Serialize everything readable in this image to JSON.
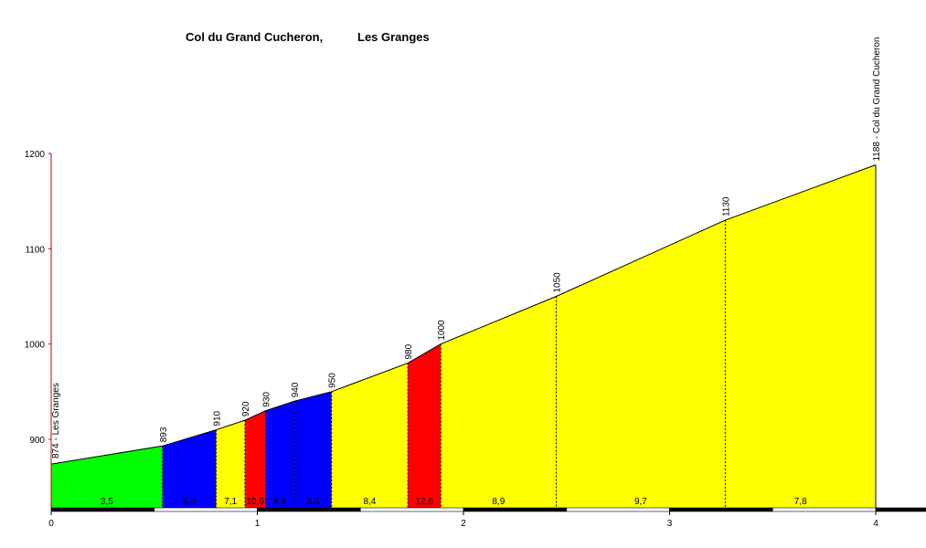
{
  "chart_data": {
    "type": "area",
    "title": "Col du Grand Cucheron,",
    "subtitle": "Les Granges",
    "x": [
      0,
      0.54,
      0.8,
      0.94,
      1.04,
      1.18,
      1.36,
      1.73,
      1.89,
      2.45,
      3.27,
      4.0
    ],
    "altitudes": [
      874,
      893,
      910,
      920,
      930,
      940,
      950,
      980,
      1000,
      1050,
      1130,
      1188
    ],
    "point_labels": [
      "874 - Les Granges",
      "893",
      "910",
      "920",
      "930",
      "940",
      "950",
      "980",
      "1000",
      "1050",
      "1130",
      "1188 - Col du Grand Cucheron"
    ],
    "segment_gradients": [
      "3,5",
      "6,5",
      "7,1",
      "10,6",
      "6,6",
      "5,6",
      "8,4",
      "12,6",
      "8,9",
      "9,7",
      "7,8"
    ],
    "segment_colors": [
      "#00ff00",
      "#0000ff",
      "#ffff00",
      "#ff0000",
      "#0000ff",
      "#0000ff",
      "#ffff00",
      "#ff0000",
      "#ffff00",
      "#ffff00",
      "#ffff00"
    ],
    "x_ticks": [
      "0",
      "1",
      "2",
      "3",
      "4"
    ],
    "y_ticks": [
      "900",
      "1000",
      "1100",
      "1200"
    ],
    "xlim": [
      0,
      4
    ],
    "ylim": [
      830,
      1200
    ]
  }
}
